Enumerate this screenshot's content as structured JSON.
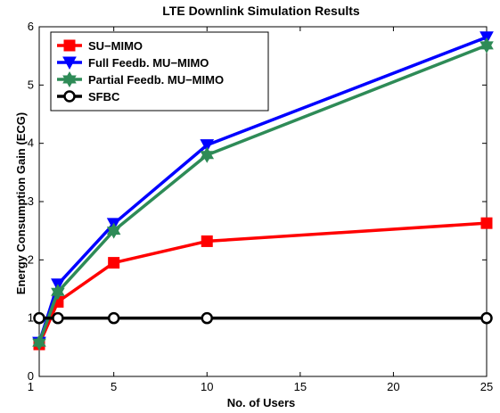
{
  "chart_data": {
    "type": "line",
    "title": "LTE Downlink Simulation Results",
    "xlabel": "No. of Users",
    "ylabel": "Energy Consumption Gain (ECG)",
    "xlim": [
      1,
      25
    ],
    "ylim": [
      0,
      6
    ],
    "xticks": [
      5,
      10,
      15,
      20,
      25
    ],
    "yticks": [
      1,
      2,
      3,
      4,
      5,
      6
    ],
    "grid": false,
    "legend_position": "top-left",
    "x": [
      1,
      2,
      5,
      10,
      25
    ],
    "series": [
      {
        "name": "SU−MIMO",
        "color": "#ff0000",
        "marker": "square",
        "values": [
          0.55,
          1.28,
          1.95,
          2.32,
          2.63
        ]
      },
      {
        "name": "Full Feedb. MU−MIMO",
        "color": "#0000ff",
        "marker": "triangle-down",
        "values": [
          0.58,
          1.58,
          2.62,
          3.97,
          5.82
        ]
      },
      {
        "name": "Partial Feedb. MU−MIMO",
        "color": "#2e8b57",
        "marker": "hexagram",
        "values": [
          0.58,
          1.45,
          2.5,
          3.8,
          5.68
        ]
      },
      {
        "name": "SFBC",
        "color": "#000000",
        "marker": "circle",
        "values": [
          1.0,
          1.0,
          1.0,
          1.0,
          1.0
        ]
      }
    ]
  }
}
